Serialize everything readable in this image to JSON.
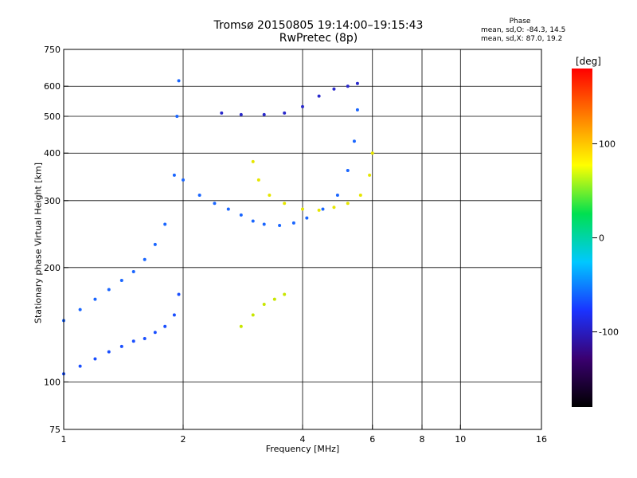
{
  "chart_data": {
    "type": "scatter",
    "title": "Tromsø 20150805 19:14:00–19:15:43",
    "subtitle": "RwPretec (8p)",
    "xlabel": "Frequency [MHz]",
    "ylabel": "Stationary phase Virtual Height [km]",
    "xscale": "log",
    "yscale": "log",
    "xlim": [
      1,
      16
    ],
    "ylim": [
      75,
      750
    ],
    "xticks": [
      1,
      2,
      4,
      6,
      8,
      10,
      16
    ],
    "yticks": [
      75,
      100,
      200,
      300,
      400,
      500,
      600,
      750
    ],
    "grid": true,
    "colorbar": {
      "label": "[deg]",
      "range": [
        -180,
        180
      ],
      "ticks": [
        100,
        0,
        -100
      ],
      "colormap": [
        "#000000",
        "#3a0070",
        "#1a33ff",
        "#00c8ff",
        "#00e050",
        "#ffff00",
        "#ff8000",
        "#ff0000"
      ]
    },
    "phase_stats": {
      "heading": "Phase",
      "o_mode": "mean, sd,O:  -84.3, 14.5",
      "x_mode": "mean, sd,X:  87.0, 19.2"
    },
    "traces": [
      {
        "description": "o-mode low trace",
        "color": "#1a4fff",
        "points": [
          [
            1.0,
            105
          ],
          [
            1.1,
            110
          ],
          [
            1.2,
            115
          ],
          [
            1.3,
            120
          ],
          [
            1.4,
            124
          ],
          [
            1.5,
            128
          ],
          [
            1.6,
            130
          ],
          [
            1.7,
            135
          ],
          [
            1.8,
            140
          ],
          [
            1.9,
            150
          ],
          [
            1.95,
            170
          ]
        ]
      },
      {
        "description": "o-mode spread F2 trace",
        "color": "#1a66ff",
        "points": [
          [
            1.0,
            145
          ],
          [
            1.1,
            155
          ],
          [
            1.2,
            165
          ],
          [
            1.3,
            175
          ],
          [
            1.4,
            185
          ],
          [
            1.5,
            195
          ],
          [
            1.6,
            210
          ],
          [
            1.7,
            230
          ],
          [
            1.8,
            260
          ],
          [
            1.9,
            350
          ],
          [
            1.93,
            500
          ],
          [
            1.95,
            620
          ]
        ]
      },
      {
        "description": "o-mode cusp trace",
        "color": "#1a66ff",
        "points": [
          [
            2.0,
            340
          ],
          [
            2.2,
            310
          ],
          [
            2.4,
            295
          ],
          [
            2.6,
            285
          ],
          [
            2.8,
            275
          ],
          [
            3.0,
            265
          ],
          [
            3.2,
            260
          ],
          [
            3.5,
            258
          ],
          [
            3.8,
            262
          ],
          [
            4.1,
            270
          ],
          [
            4.5,
            285
          ],
          [
            4.9,
            310
          ],
          [
            5.2,
            360
          ],
          [
            5.4,
            430
          ],
          [
            5.5,
            520
          ]
        ]
      },
      {
        "description": "x-mode yellow trace",
        "color": "#e6e600",
        "points": [
          [
            3.0,
            380
          ],
          [
            3.1,
            340
          ],
          [
            3.3,
            310
          ],
          [
            3.6,
            295
          ],
          [
            4.0,
            285
          ],
          [
            4.4,
            283
          ],
          [
            4.8,
            288
          ],
          [
            5.2,
            295
          ],
          [
            5.6,
            310
          ],
          [
            5.9,
            350
          ],
          [
            6.0,
            400
          ]
        ]
      },
      {
        "description": "x-mode lower yellow trace",
        "color": "#c8e600",
        "points": [
          [
            2.8,
            140
          ],
          [
            3.0,
            150
          ],
          [
            3.2,
            160
          ],
          [
            3.4,
            165
          ],
          [
            3.6,
            170
          ]
        ]
      },
      {
        "description": "upper multiple-hop trace",
        "color": "#2a2acc",
        "points": [
          [
            2.5,
            510
          ],
          [
            2.8,
            505
          ],
          [
            3.2,
            505
          ],
          [
            3.6,
            510
          ],
          [
            4.0,
            530
          ],
          [
            4.4,
            565
          ],
          [
            4.8,
            590
          ],
          [
            5.2,
            600
          ],
          [
            5.5,
            610
          ]
        ]
      }
    ]
  }
}
